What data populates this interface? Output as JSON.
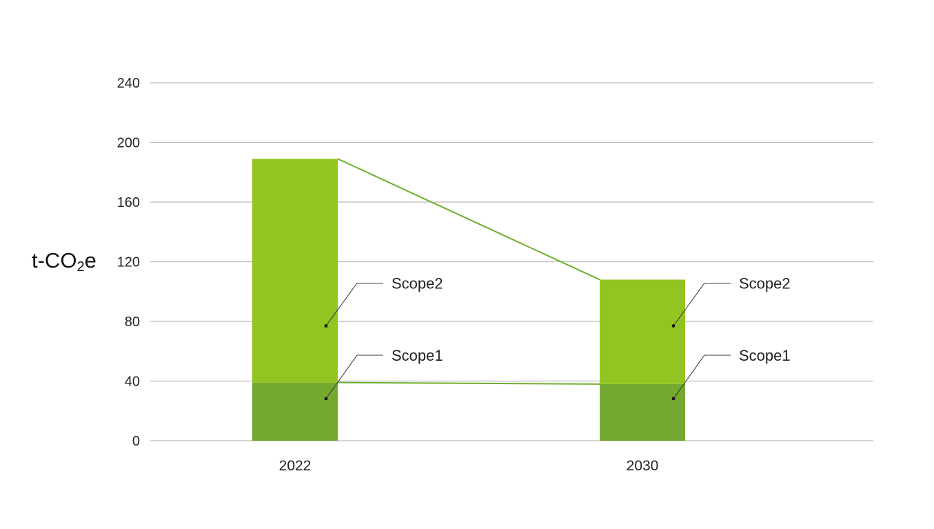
{
  "chart_data": {
    "type": "bar",
    "stacked": true,
    "categories": [
      "2022",
      "2030"
    ],
    "series": [
      {
        "name": "Scope1",
        "values": [
          39,
          38
        ],
        "color": "#74a92f"
      },
      {
        "name": "Scope2",
        "values": [
          150,
          70
        ],
        "color": "#92c422"
      }
    ],
    "ylabel": {
      "main": "t-CO",
      "sub": "2",
      "suffix": "e"
    },
    "ylim": [
      0,
      240
    ],
    "yticks": [
      0,
      40,
      80,
      120,
      160,
      200,
      240
    ],
    "grid": true,
    "connector_color": "#6fae2c",
    "gridline_color": "#b9b9b9"
  }
}
